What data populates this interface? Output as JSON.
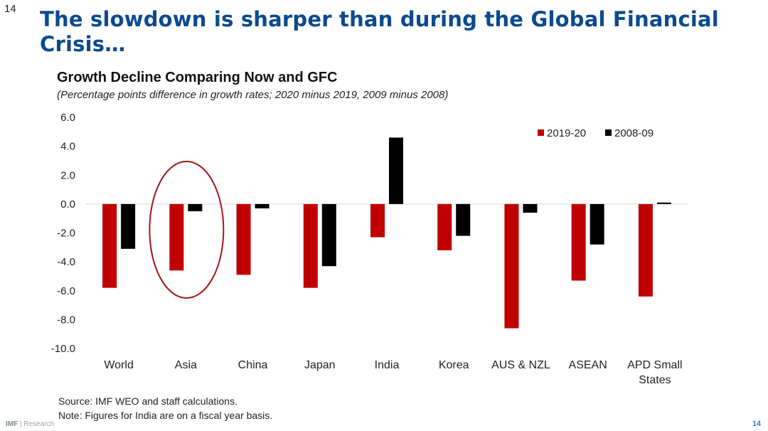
{
  "slide": {
    "page_number": "14",
    "title": "The slowdown is sharper than during the Global Financial Crisis…",
    "source_line": "Source: IMF WEO and staff calculations.",
    "note_line": "Note: Figures for India are on a fiscal year basis.",
    "footer_brand": "IMF",
    "footer_section": "Research",
    "footer_page": "14",
    "highlight": "Asia"
  },
  "chart_data": {
    "type": "bar",
    "title": "Growth Decline Comparing Now and GFC",
    "subtitle": "(Percentage points difference in growth rates; 2020 minus 2019, 2009 minus 2008)",
    "xlabel": "",
    "ylabel": "",
    "categories": [
      "World",
      "Asia",
      "China",
      "Japan",
      "India",
      "Korea",
      "AUS & NZL",
      "ASEAN",
      "APD Small States"
    ],
    "series": [
      {
        "name": "2019-20",
        "color": "#c00000",
        "values": [
          -5.8,
          -4.6,
          -4.9,
          -5.8,
          -2.3,
          -3.2,
          -8.6,
          -5.3,
          -6.4
        ]
      },
      {
        "name": "2008-09",
        "color": "#000000",
        "values": [
          -3.1,
          -0.5,
          -0.3,
          -4.3,
          4.6,
          -2.2,
          -0.6,
          -2.8,
          0.1
        ]
      }
    ],
    "ylim": [
      -10,
      6
    ],
    "yticks": [
      "6.0",
      "4.0",
      "2.0",
      "0.0",
      "-2.0",
      "-4.0",
      "-6.0",
      "-8.0",
      "-10.0"
    ],
    "grid": false,
    "legend_position": "top-right",
    "highlight_color": "#a01818"
  }
}
